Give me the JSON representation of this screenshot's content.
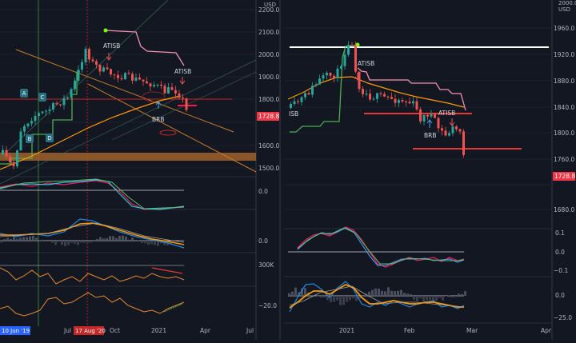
{
  "chart_data": [
    {
      "type": "candlestick",
      "name_on_chart": "",
      "price_axis": {
        "unit": "USD",
        "ticks": [
          "2200.0",
          "2100.0",
          "2000.0",
          "1900.0",
          "1800.0",
          "1700.0",
          "1600.0",
          "1500.0"
        ],
        "ylim": [
          1455,
          2210
        ]
      },
      "last_price_label": "1728.8",
      "time_axis_labels": [
        "Jul",
        "Oct",
        "2021",
        "Apr",
        "Jul"
      ],
      "highlighted_dates": [
        "10 Jun '19",
        "17 Aug '20"
      ],
      "annotations": [
        "ATISB",
        "ATISB",
        "BRB",
        "A",
        "B",
        "C",
        "D"
      ],
      "panes": [
        {
          "name": "indicator-1",
          "ticks": [
            "0.0"
          ]
        },
        {
          "name": "indicator-2",
          "ticks": [
            "0.0"
          ]
        },
        {
          "name": "indicator-3",
          "ticks": [
            "300K"
          ]
        },
        {
          "name": "indicator-4",
          "ticks": [
            "−20.0"
          ]
        }
      ]
    },
    {
      "type": "candlestick",
      "price_axis": {
        "unit": "USD",
        "ticks": [
          "2000.0",
          "1960.0",
          "1920.0",
          "1880.0",
          "1840.0",
          "1800.0",
          "1760.0",
          "1720.0",
          "1680.0"
        ],
        "ylim": [
          1664,
          2004
        ]
      },
      "last_price_label": "1728.8",
      "time_axis_labels": [
        "2021",
        "Feb",
        "Mar",
        "Apr"
      ],
      "annotations": [
        "ATISB",
        "ATISB",
        "BRB",
        "ISB"
      ],
      "panes": [
        {
          "name": "indicator-1",
          "ticks": [
            "0.1",
            "0.0",
            "−0.1"
          ]
        },
        {
          "name": "indicator-2",
          "ticks": [
            "0.0",
            "−25.0"
          ]
        }
      ]
    }
  ],
  "colors": {
    "background": "#131722",
    "up": "#26a69a",
    "down": "#ef5350",
    "ema": "#ff9800",
    "stop_green": "#4caf50",
    "stop_pink": "#f48fb1",
    "resistance_red": "#e53935",
    "zone_orange": "#c77b2a",
    "support_white": "#ffffff",
    "price_badge": "#f23645",
    "date_badge_blue": "#2962ff",
    "date_badge_red": "#c62828"
  }
}
